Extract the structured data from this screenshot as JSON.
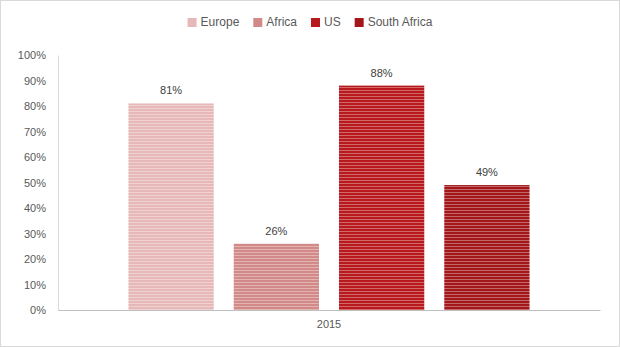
{
  "chart_data": {
    "type": "bar",
    "categories": [
      "2015"
    ],
    "series": [
      {
        "name": "Europe",
        "color": "#e6b9b8",
        "values": [
          81
        ],
        "value_labels": [
          "81%"
        ]
      },
      {
        "name": "Africa",
        "color": "#d28a89",
        "values": [
          26
        ],
        "value_labels": [
          "26%"
        ]
      },
      {
        "name": "US",
        "color": "#b8191c",
        "values": [
          88
        ],
        "value_labels": [
          "88%"
        ]
      },
      {
        "name": "South Africa",
        "color": "#a3171a",
        "values": [
          49
        ],
        "value_labels": [
          "49%"
        ]
      }
    ],
    "ylim": [
      0,
      100
    ],
    "yticks": [
      {
        "value": 0,
        "label": "0%"
      },
      {
        "value": 10,
        "label": "10%"
      },
      {
        "value": 20,
        "label": "20%"
      },
      {
        "value": 30,
        "label": "30%"
      },
      {
        "value": 40,
        "label": "40%"
      },
      {
        "value": 50,
        "label": "50%"
      },
      {
        "value": 60,
        "label": "60%"
      },
      {
        "value": 70,
        "label": "70%"
      },
      {
        "value": 80,
        "label": "80%"
      },
      {
        "value": 90,
        "label": "90%"
      },
      {
        "value": 100,
        "label": "100%"
      }
    ],
    "grid": false,
    "legend": "top",
    "data_labels": true
  }
}
